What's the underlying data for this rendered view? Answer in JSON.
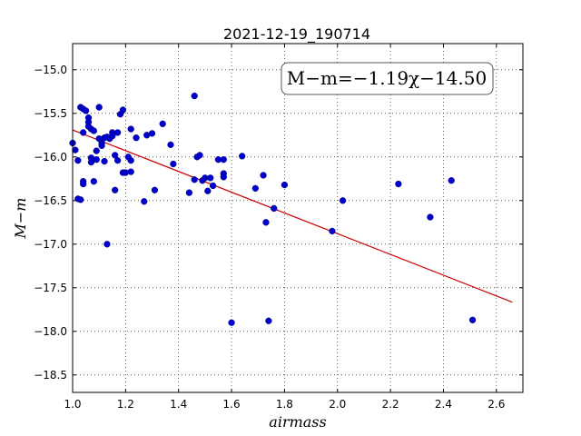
{
  "chart_data": {
    "type": "scatter",
    "title": "2021-12-19_190714",
    "xlabel": "airmass",
    "ylabel": "M−m",
    "xlim": [
      1.0,
      2.7
    ],
    "ylim": [
      -18.7,
      -14.7
    ],
    "grid": true,
    "x_ticks": [
      1.0,
      1.2,
      1.4,
      1.6,
      1.8,
      2.0,
      2.2,
      2.4,
      2.6
    ],
    "x_tick_labels": [
      "1.0",
      "1.2",
      "1.4",
      "1.6",
      "1.8",
      "2.0",
      "2.2",
      "2.4",
      "2.6"
    ],
    "y_ticks": [
      -15.0,
      -15.5,
      -16.0,
      -16.5,
      -17.0,
      -17.5,
      -18.0,
      -18.5
    ],
    "y_tick_labels": [
      "−15.0",
      "−15.5",
      "−16.0",
      "−16.5",
      "−17.0",
      "−17.5",
      "−18.0",
      "−18.5"
    ],
    "annotation": "M−m=−1.19χ−14.50",
    "annotation_position": "top-right",
    "point_color": "#0000cc",
    "fit_color": "#cc0000",
    "fit": {
      "slope": -1.19,
      "intercept": -14.5,
      "x_range": [
        1.0,
        2.66
      ]
    },
    "points": [
      [
        1.0,
        -15.84
      ],
      [
        1.01,
        -15.92
      ],
      [
        1.02,
        -16.04
      ],
      [
        1.02,
        -16.48
      ],
      [
        1.03,
        -16.49
      ],
      [
        1.03,
        -15.43
      ],
      [
        1.04,
        -15.45
      ],
      [
        1.04,
        -16.28
      ],
      [
        1.04,
        -16.31
      ],
      [
        1.05,
        -15.47
      ],
      [
        1.04,
        -15.72
      ],
      [
        1.06,
        -15.55
      ],
      [
        1.06,
        -15.6
      ],
      [
        1.06,
        -15.65
      ],
      [
        1.07,
        -15.68
      ],
      [
        1.07,
        -16.06
      ],
      [
        1.07,
        -16.01
      ],
      [
        1.08,
        -15.7
      ],
      [
        1.08,
        -16.28
      ],
      [
        1.09,
        -15.93
      ],
      [
        1.09,
        -16.03
      ],
      [
        1.1,
        -15.43
      ],
      [
        1.1,
        -15.79
      ],
      [
        1.11,
        -15.84
      ],
      [
        1.11,
        -15.87
      ],
      [
        1.12,
        -16.05
      ],
      [
        1.12,
        -15.78
      ],
      [
        1.13,
        -15.77
      ],
      [
        1.14,
        -15.79
      ],
      [
        1.13,
        -17.0
      ],
      [
        1.15,
        -15.76
      ],
      [
        1.15,
        -15.72
      ],
      [
        1.16,
        -15.98
      ],
      [
        1.16,
        -16.38
      ],
      [
        1.17,
        -15.72
      ],
      [
        1.17,
        -16.04
      ],
      [
        1.18,
        -15.51
      ],
      [
        1.19,
        -15.46
      ],
      [
        1.19,
        -16.18
      ],
      [
        1.2,
        -16.18
      ],
      [
        1.21,
        -16.0
      ],
      [
        1.22,
        -15.68
      ],
      [
        1.22,
        -16.04
      ],
      [
        1.22,
        -16.17
      ],
      [
        1.24,
        -15.78
      ],
      [
        1.27,
        -16.51
      ],
      [
        1.28,
        -15.75
      ],
      [
        1.3,
        -15.73
      ],
      [
        1.31,
        -16.38
      ],
      [
        1.34,
        -15.62
      ],
      [
        1.37,
        -15.86
      ],
      [
        1.38,
        -16.08
      ],
      [
        1.44,
        -16.41
      ],
      [
        1.46,
        -16.26
      ],
      [
        1.46,
        -15.3
      ],
      [
        1.47,
        -16.0
      ],
      [
        1.48,
        -15.98
      ],
      [
        1.49,
        -16.27
      ],
      [
        1.5,
        -16.24
      ],
      [
        1.51,
        -16.39
      ],
      [
        1.52,
        -16.24
      ],
      [
        1.53,
        -16.33
      ],
      [
        1.55,
        -16.03
      ],
      [
        1.57,
        -16.19
      ],
      [
        1.57,
        -16.03
      ],
      [
        1.57,
        -16.23
      ],
      [
        1.6,
        -17.9
      ],
      [
        1.64,
        -15.99
      ],
      [
        1.69,
        -16.36
      ],
      [
        1.72,
        -16.21
      ],
      [
        1.73,
        -16.75
      ],
      [
        1.74,
        -17.88
      ],
      [
        1.76,
        -16.59
      ],
      [
        1.8,
        -16.32
      ],
      [
        1.98,
        -16.85
      ],
      [
        2.02,
        -16.5
      ],
      [
        2.23,
        -16.31
      ],
      [
        2.35,
        -16.69
      ],
      [
        2.43,
        -16.27
      ],
      [
        2.51,
        -17.87
      ]
    ]
  }
}
